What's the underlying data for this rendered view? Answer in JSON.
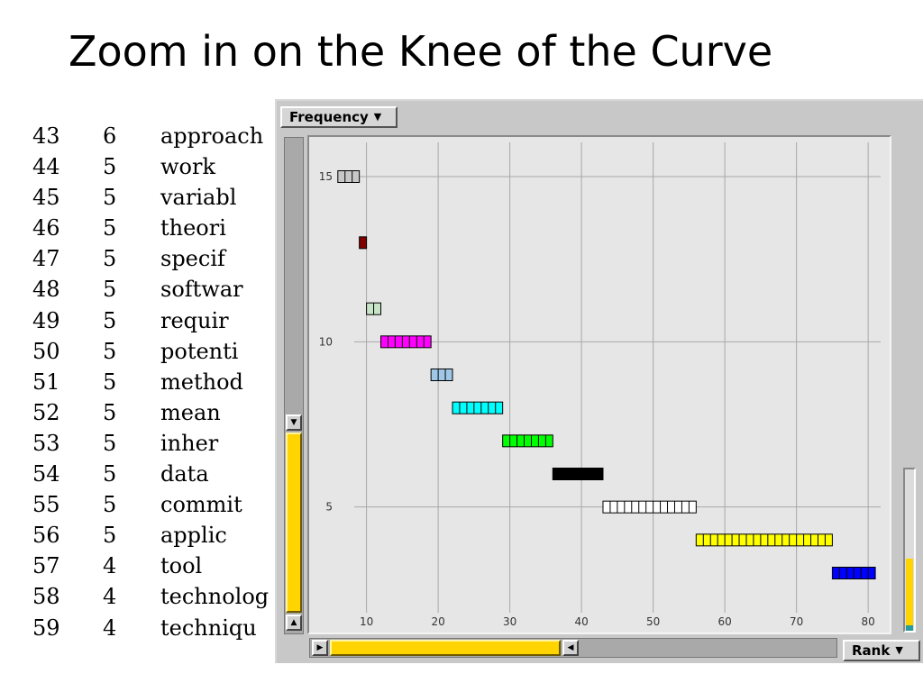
{
  "slide": {
    "title": "Zoom in on the Knee of the Curve"
  },
  "terms": [
    {
      "rank": "43",
      "freq": "6",
      "term": "approach"
    },
    {
      "rank": "44",
      "freq": "5",
      "term": "work"
    },
    {
      "rank": "45",
      "freq": "5",
      "term": "variabl"
    },
    {
      "rank": "46",
      "freq": "5",
      "term": "theori"
    },
    {
      "rank": "47",
      "freq": "5",
      "term": "specif"
    },
    {
      "rank": "48",
      "freq": "5",
      "term": "softwar"
    },
    {
      "rank": "49",
      "freq": "5",
      "term": "requir"
    },
    {
      "rank": "50",
      "freq": "5",
      "term": "potenti"
    },
    {
      "rank": "51",
      "freq": "5",
      "term": "method"
    },
    {
      "rank": "52",
      "freq": "5",
      "term": "mean"
    },
    {
      "rank": "53",
      "freq": "5",
      "term": "inher"
    },
    {
      "rank": "54",
      "freq": "5",
      "term": "data"
    },
    {
      "rank": "55",
      "freq": "5",
      "term": "commit"
    },
    {
      "rank": "56",
      "freq": "5",
      "term": "applic"
    },
    {
      "rank": "57",
      "freq": "4",
      "term": "tool"
    },
    {
      "rank": "58",
      "freq": "4",
      "term": "technolog"
    },
    {
      "rank": "59",
      "freq": "4",
      "term": "techniqu"
    }
  ],
  "app": {
    "y_selector": {
      "label": "Frequency",
      "arrow": "▼"
    },
    "x_selector": {
      "label": "Rank",
      "arrow": "▼"
    },
    "scroll_arrows": {
      "up": "▲",
      "down": "▼",
      "left": "◀",
      "right": "▶"
    },
    "accent_color": "#ffd400"
  },
  "chart_data": {
    "type": "bar",
    "title": "",
    "xlabel": "Rank",
    "ylabel": "Frequency",
    "xlim": [
      2,
      83
    ],
    "ylim": [
      1.2,
      16.2
    ],
    "x_ticks": [
      10,
      20,
      30,
      40,
      50,
      60,
      70,
      80
    ],
    "y_ticks": [
      5,
      10,
      15
    ],
    "grid": true,
    "bars": [
      {
        "frequency": 15,
        "rank_start": 6,
        "rank_end": 9,
        "color": "#c8c8c8"
      },
      {
        "frequency": 13,
        "rank_start": 9,
        "rank_end": 10,
        "color": "#800000"
      },
      {
        "frequency": 11,
        "rank_start": 10,
        "rank_end": 12,
        "color": "#c8e4c8"
      },
      {
        "frequency": 10,
        "rank_start": 12,
        "rank_end": 19,
        "color": "#ff00ff"
      },
      {
        "frequency": 9,
        "rank_start": 19,
        "rank_end": 22,
        "color": "#a0c8e6"
      },
      {
        "frequency": 8,
        "rank_start": 22,
        "rank_end": 29,
        "color": "#00ffff"
      },
      {
        "frequency": 7,
        "rank_start": 29,
        "rank_end": 36,
        "color": "#00ff00"
      },
      {
        "frequency": 6,
        "rank_start": 36,
        "rank_end": 43,
        "color": "#000000"
      },
      {
        "frequency": 5,
        "rank_start": 43,
        "rank_end": 56,
        "color": "#ffffff"
      },
      {
        "frequency": 4,
        "rank_start": 56,
        "rank_end": 75,
        "color": "#ffff00"
      },
      {
        "frequency": 3,
        "rank_start": 75,
        "rank_end": 81,
        "color": "#0000ff"
      }
    ]
  }
}
